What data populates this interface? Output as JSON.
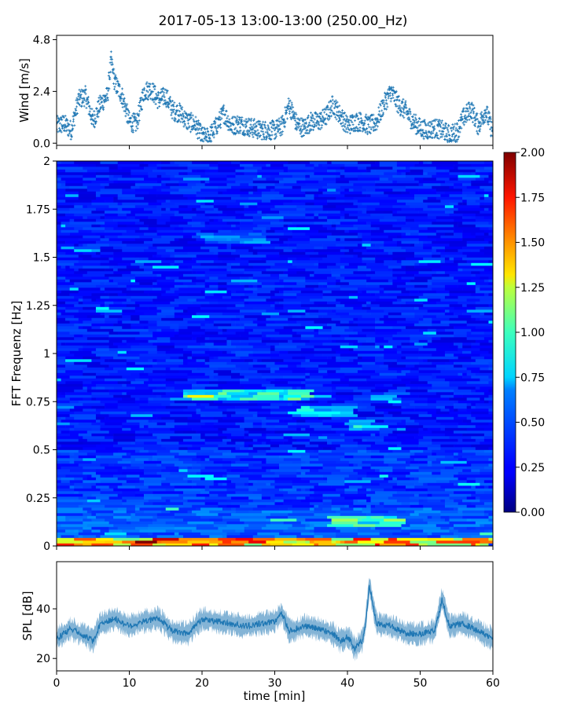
{
  "figure": {
    "title": "2017-05-13 13:00-13:00 (250.00_Hz)"
  },
  "chart_data": [
    {
      "type": "scatter",
      "panel": "wind",
      "title": "",
      "xlabel": "",
      "ylabel": "Wind [m/s]",
      "xlim": [
        0,
        60
      ],
      "ylim": [
        -0.1,
        5.0
      ],
      "yticks": [
        "0.0",
        "2.4",
        "4.8"
      ],
      "yticks_values": [
        0.0,
        2.4,
        4.8
      ],
      "marker": "+",
      "color": "#1f77b4",
      "series": [
        {
          "x": [
            0,
            1,
            2,
            3,
            4,
            5,
            6,
            7,
            7.5,
            8,
            9,
            10,
            11,
            12,
            13,
            14,
            15,
            16,
            17,
            18,
            19,
            20,
            21,
            22,
            23,
            24,
            25,
            26,
            27,
            28,
            29,
            30,
            31,
            32,
            33,
            34,
            35,
            36,
            37,
            38,
            39,
            40,
            41,
            42,
            43,
            44,
            45,
            46,
            47,
            48,
            49,
            50,
            51,
            52,
            53,
            54,
            55,
            56,
            57,
            58,
            59,
            60
          ],
          "values": [
            0.8,
            0.9,
            0.6,
            2.0,
            2.2,
            1.0,
            1.8,
            2.2,
            3.8,
            2.8,
            2.2,
            1.0,
            0.9,
            2.4,
            2.5,
            2.0,
            2.2,
            1.5,
            1.4,
            1.0,
            0.9,
            0.3,
            0.3,
            0.8,
            1.4,
            0.8,
            0.9,
            0.8,
            0.7,
            0.6,
            0.6,
            0.6,
            0.8,
            1.8,
            0.9,
            0.7,
            1.0,
            1.0,
            1.2,
            1.8,
            1.3,
            0.8,
            1.0,
            1.0,
            0.8,
            1.0,
            1.8,
            2.4,
            1.8,
            1.5,
            1.0,
            0.7,
            0.6,
            0.7,
            0.6,
            0.4,
            0.5,
            1.2,
            1.6,
            0.8,
            1.5,
            0.5
          ]
        }
      ]
    },
    {
      "type": "heatmap",
      "panel": "spectrogram",
      "title": "",
      "xlabel": "",
      "ylabel": "FFT Frequenz [Hz]",
      "xlim": [
        0,
        60
      ],
      "ylim": [
        0,
        2
      ],
      "yticks": [
        "0",
        "0.25",
        "0.5",
        "0.75",
        "1",
        "1.25",
        "1.5",
        "1.75",
        "2"
      ],
      "yticks_values": [
        0,
        0.25,
        0.5,
        0.75,
        1,
        1.25,
        1.5,
        1.75,
        2
      ],
      "colormap": "jet",
      "clim": [
        0,
        2
      ],
      "colorbar_ticks": [
        "0.00",
        "0.25",
        "0.50",
        "0.75",
        "1.00",
        "1.25",
        "1.50",
        "1.75",
        "2.00"
      ],
      "colorbar_ticks_values": [
        0,
        0.25,
        0.5,
        0.75,
        1,
        1.25,
        1.5,
        1.75,
        2
      ],
      "features": [
        {
          "freq": 0.78,
          "t_start": 17,
          "t_end": 35,
          "level": 0.9
        },
        {
          "freq": 0.7,
          "t_start": 33,
          "t_end": 40,
          "level": 0.75
        },
        {
          "freq": 0.63,
          "t_start": 40,
          "t_end": 44,
          "level": 0.8
        },
        {
          "freq": 0.77,
          "t_start": 44,
          "t_end": 47,
          "level": 0.7
        },
        {
          "freq": 1.6,
          "t_start": 20,
          "t_end": 28,
          "level": 0.55
        },
        {
          "freq": 0.13,
          "t_start": 37,
          "t_end": 47,
          "level": 1.0
        },
        {
          "freq": 0.02,
          "t_start": 0,
          "t_end": 60,
          "level": 1.6
        }
      ]
    },
    {
      "type": "line",
      "panel": "spl",
      "title": "",
      "xlabel": "time [min]",
      "ylabel": "SPL [dB]",
      "xlim": [
        0,
        60
      ],
      "ylim": [
        15,
        59
      ],
      "xticks": [
        "0",
        "10",
        "20",
        "30",
        "40",
        "50",
        "60"
      ],
      "xticks_values": [
        0,
        10,
        20,
        30,
        40,
        50,
        60
      ],
      "yticks": [
        "20",
        "40"
      ],
      "yticks_values": [
        20,
        40
      ],
      "color": "#1f77b4",
      "series": [
        {
          "x": [
            0,
            2,
            4,
            5,
            6,
            8,
            10,
            12,
            14,
            16,
            18,
            20,
            22,
            24,
            26,
            28,
            30,
            31,
            32,
            34,
            36,
            38,
            39,
            40,
            41,
            42,
            42.5,
            43,
            44,
            46,
            48,
            50,
            52,
            53,
            54,
            56,
            58,
            60
          ],
          "values": [
            28,
            32,
            29,
            27,
            34,
            36,
            33,
            35,
            36,
            31,
            30,
            36,
            35,
            34,
            33,
            34,
            35,
            38,
            31,
            33,
            32,
            30,
            27,
            29,
            24,
            27,
            34,
            50,
            34,
            33,
            30,
            30,
            31,
            44,
            33,
            34,
            31,
            28
          ]
        }
      ]
    }
  ]
}
